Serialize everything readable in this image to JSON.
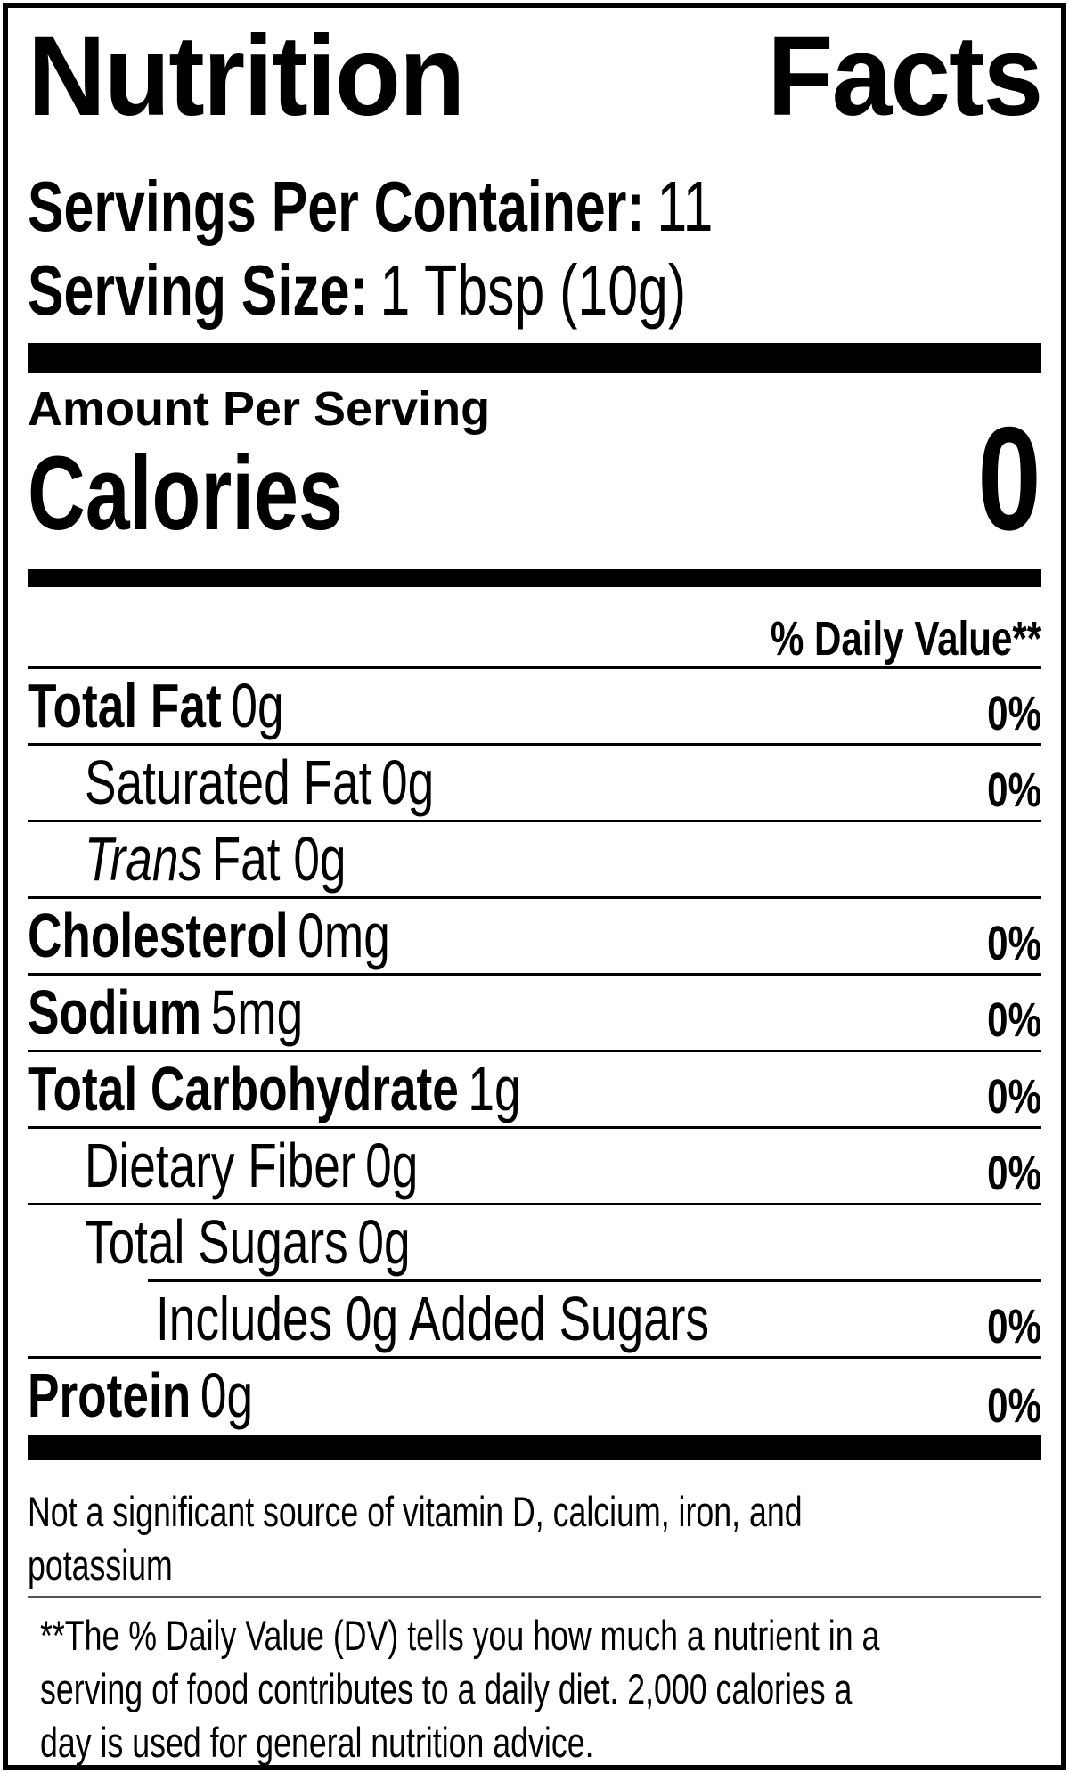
{
  "title": {
    "word1": "Nutrition",
    "word2": "Facts"
  },
  "servings_per_container": {
    "label": "Servings Per Container:",
    "value": "11"
  },
  "serving_size": {
    "label": "Serving Size:",
    "value": "1 Tbsp (10g)"
  },
  "amount_per_serving": "Amount Per Serving",
  "calories": {
    "label": "Calories",
    "value": "0"
  },
  "daily_value_header": "% Daily Value**",
  "rows": [
    {
      "label": "Total Fat",
      "bold": true,
      "italic": "",
      "amount": "0g",
      "dv": "0%",
      "indent": 0,
      "rule": "full"
    },
    {
      "label": "Saturated Fat",
      "bold": false,
      "italic": "",
      "amount": "0g",
      "dv": "0%",
      "indent": 1,
      "rule": "full"
    },
    {
      "label": "",
      "bold": false,
      "italic": "Trans",
      "amount": "Fat 0g",
      "dv": "",
      "indent": 1,
      "rule": "full"
    },
    {
      "label": "Cholesterol",
      "bold": true,
      "italic": "",
      "amount": "0mg",
      "dv": "0%",
      "indent": 0,
      "rule": "full"
    },
    {
      "label": "Sodium",
      "bold": true,
      "italic": "",
      "amount": "5mg",
      "dv": "0%",
      "indent": 0,
      "rule": "full"
    },
    {
      "label": "Total Carbohydrate",
      "bold": true,
      "italic": "",
      "amount": "1g",
      "dv": "0%",
      "indent": 0,
      "rule": "full"
    },
    {
      "label": "Dietary Fiber",
      "bold": false,
      "italic": "",
      "amount": "0g",
      "dv": "0%",
      "indent": 1,
      "rule": "full"
    },
    {
      "label": "Total Sugars",
      "bold": false,
      "italic": "",
      "amount": "0g",
      "dv": "",
      "indent": 1,
      "rule": "indent"
    },
    {
      "label": "Includes 0g Added Sugars",
      "bold": false,
      "italic": "",
      "amount": "",
      "dv": "0%",
      "indent": 2,
      "rule": "full"
    },
    {
      "label": "Protein",
      "bold": true,
      "italic": "",
      "amount": "0g",
      "dv": "0%",
      "indent": 0,
      "rule": "none"
    }
  ],
  "not_significant_lines": [
    "Not a significant source of vitamin D, calcium, iron, and",
    "potassium"
  ],
  "footnote_lines": [
    "**The % Daily Value (DV) tells you how much a nutrient in a",
    "serving of food contributes to a daily diet. 2,000 calories a",
    "day is used for general nutrition advice."
  ],
  "colors": {
    "text": "#000000",
    "background": "#ffffff",
    "footnote_rule": "#555555"
  }
}
